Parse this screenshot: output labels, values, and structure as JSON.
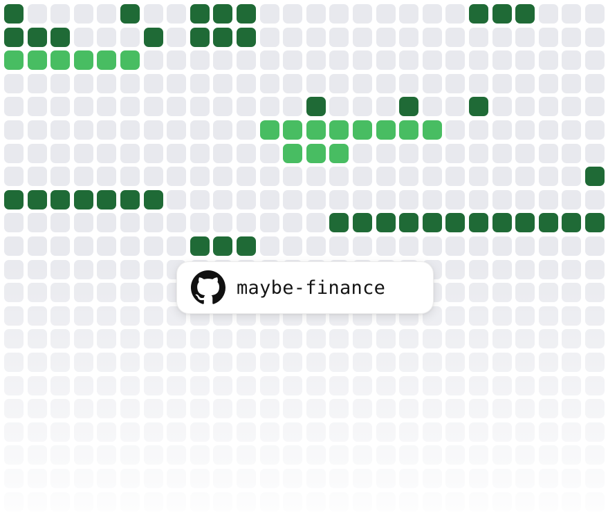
{
  "badge": {
    "label": "maybe-finance",
    "icon": "github-icon"
  },
  "palette": {
    "empty": "#e8e9ee",
    "light": "#8fe3a1",
    "medium": "#48bd62",
    "dark": "#1f6a36"
  },
  "grid": {
    "columns": 26,
    "rows": 22,
    "levels": [
      "30000300333000000000333000",
      "33300030333000000000000000",
      "22222200000000000000000000",
      "00000000000000000000000000",
      "00000000000003000300300000",
      "00000000000222222220000000",
      "00000000000022200000000000",
      "00000000000000000000000003",
      "33333330000000000000000000",
      "00000000000000333333333333",
      "00000000333000000000000000",
      "00000000000000000000000000",
      "00000000000000000000000000",
      "00000000000000000000000000",
      "00000000000000000000000000",
      "00000000000000000000000000",
      "00000000000000000000000000",
      "00000000000000000000000000",
      "00000000000000000000000000",
      "00000000000000000000000000",
      "00000000000000000000000000",
      "00000000000000000000000000"
    ]
  }
}
